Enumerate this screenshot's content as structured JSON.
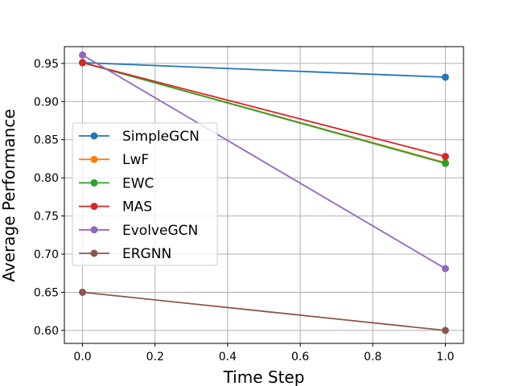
{
  "chart_data": {
    "type": "line",
    "title": "",
    "xlabel": "Time Step",
    "ylabel": "Average Performance",
    "x": [
      0.0,
      1.0
    ],
    "xlim": [
      -0.05,
      1.05
    ],
    "ylim": [
      0.583,
      0.972
    ],
    "xticks": [
      0.0,
      0.2,
      0.4,
      0.6,
      0.8,
      1.0
    ],
    "xtick_labels": [
      "0.0",
      "0.2",
      "0.4",
      "0.6",
      "0.8",
      "1.0"
    ],
    "yticks": [
      0.6,
      0.65,
      0.7,
      0.75,
      0.8,
      0.85,
      0.9,
      0.95
    ],
    "ytick_labels": [
      "0.60",
      "0.65",
      "0.70",
      "0.75",
      "0.80",
      "0.85",
      "0.90",
      "0.95"
    ],
    "grid": true,
    "legend_position": "center-left",
    "series": [
      {
        "name": "SimpleGCN",
        "values": [
          0.951,
          0.932
        ],
        "color": "#1f77b4"
      },
      {
        "name": "LwF",
        "values": [
          0.951,
          0.82
        ],
        "color": "#ff7f0e"
      },
      {
        "name": "EWC",
        "values": [
          0.951,
          0.819
        ],
        "color": "#2ca02c"
      },
      {
        "name": "MAS",
        "values": [
          0.951,
          0.828
        ],
        "color": "#d62728"
      },
      {
        "name": "EvolveGCN",
        "values": [
          0.961,
          0.681
        ],
        "color": "#9467bd"
      },
      {
        "name": "ERGNN",
        "values": [
          0.65,
          0.6
        ],
        "color": "#8c564b"
      }
    ]
  }
}
